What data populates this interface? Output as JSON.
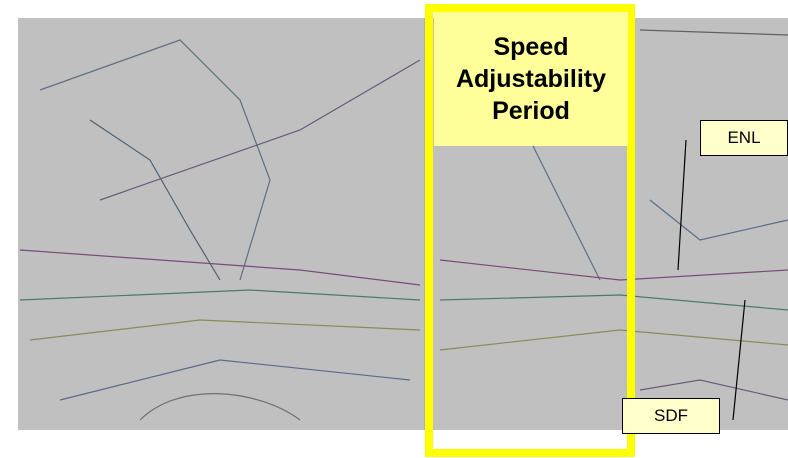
{
  "callout": {
    "title": "Speed Adjustability Period"
  },
  "labels": [
    "ENL",
    "SDF"
  ]
}
